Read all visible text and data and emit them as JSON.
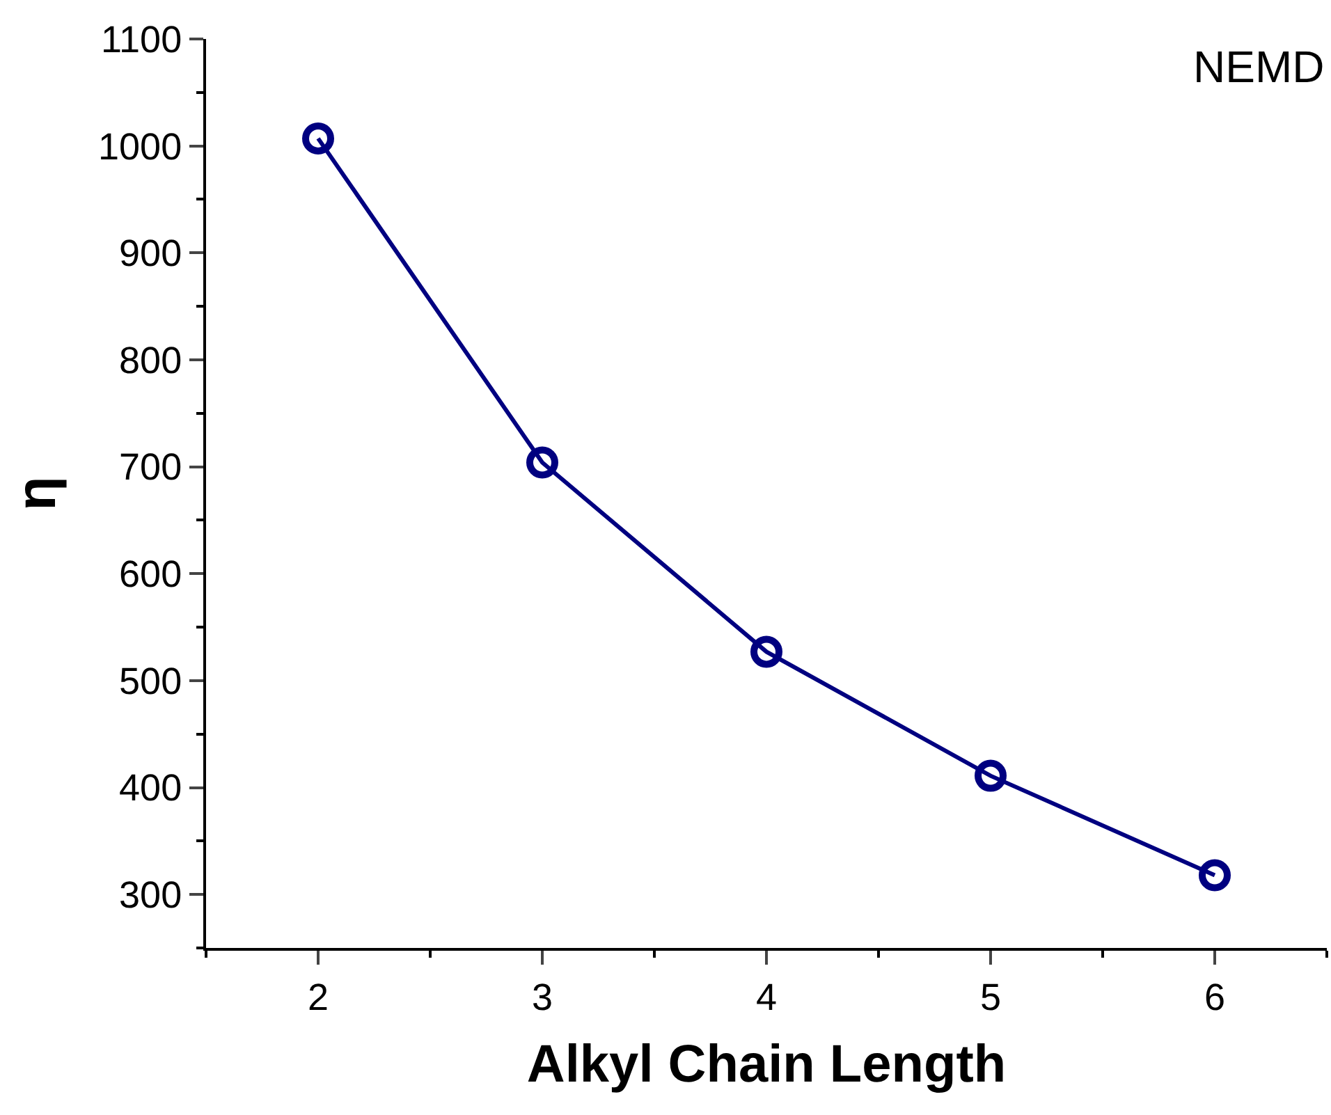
{
  "chart_data": {
    "type": "line",
    "xlabel": "Alkyl Chain Length",
    "ylabel": "η",
    "annotations": [
      "NEMD"
    ],
    "x": [
      2,
      3,
      4,
      5,
      6
    ],
    "series": [
      {
        "color": "#000080",
        "values": [
          1007,
          704,
          527,
          411,
          318
        ]
      }
    ],
    "xlim": [
      1.5,
      6.5
    ],
    "ylim": [
      250,
      1100
    ],
    "xticks": [
      {
        "value": 1.5,
        "label": null
      },
      2,
      {
        "value": 2.5,
        "label": null
      },
      3,
      {
        "value": 3.5,
        "label": null
      },
      4,
      {
        "value": 4.5,
        "label": null
      },
      5,
      {
        "value": 5.5,
        "label": null
      },
      6,
      {
        "value": 6.5,
        "label": null
      }
    ],
    "yticks": [
      {
        "value": 250,
        "label": null
      },
      300,
      {
        "value": 350,
        "label": null
      },
      400,
      {
        "value": 450,
        "label": null
      },
      500,
      {
        "value": 550,
        "label": null
      },
      600,
      {
        "value": 650,
        "label": null
      },
      700,
      {
        "value": 750,
        "label": null
      },
      800,
      {
        "value": 850,
        "label": null
      },
      900,
      {
        "value": 950,
        "label": null
      },
      1000,
      {
        "value": 1050,
        "label": null
      },
      1100
    ],
    "marker": "circle",
    "line_style": "solid"
  }
}
